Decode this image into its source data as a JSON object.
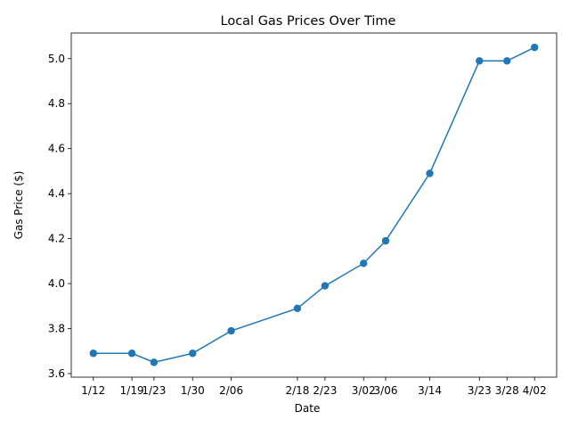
{
  "chart_data": {
    "type": "line",
    "title": "Local Gas Prices Over Time",
    "xlabel": "Date",
    "ylabel": "Gas Price ($)",
    "x": [
      "1/12",
      "1/19",
      "1/23",
      "1/30",
      "2/06",
      "2/18",
      "2/23",
      "3/02",
      "3/06",
      "3/14",
      "3/23",
      "3/28",
      "4/02"
    ],
    "x_day_of_year": [
      12,
      19,
      23,
      30,
      37,
      49,
      54,
      61,
      65,
      73,
      82,
      87,
      92
    ],
    "series": [
      {
        "values": [
          3.69,
          3.69,
          3.65,
          3.69,
          3.79,
          3.89,
          3.99,
          4.09,
          4.19,
          4.49,
          4.99,
          4.99,
          5.05
        ],
        "color": "#1f77b4",
        "marker": "circle"
      }
    ],
    "yticks": [
      3.6,
      3.8,
      4.0,
      4.2,
      4.4,
      4.6,
      4.8,
      5.0
    ],
    "ytick_labels": [
      "3.6",
      "3.8",
      "4.0",
      "4.2",
      "4.4",
      "4.6",
      "4.8",
      "5.0"
    ],
    "ylim": [
      3.6,
      5.1
    ],
    "grid": false,
    "legend": "none"
  }
}
